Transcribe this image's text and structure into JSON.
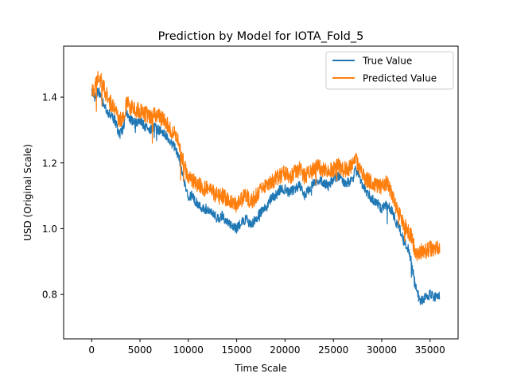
{
  "chart_data": {
    "type": "line",
    "title": "Prediction by Model for IOTA_Fold_5",
    "xlabel": "Time Scale",
    "ylabel": "USD (Original Scale)",
    "xlim": [
      -2900,
      37900
    ],
    "ylim": [
      0.665,
      1.555
    ],
    "xticks": [
      0,
      5000,
      10000,
      15000,
      20000,
      25000,
      30000,
      35000
    ],
    "xtick_labels": [
      "0",
      "5000",
      "10000",
      "15000",
      "20000",
      "25000",
      "30000",
      "35000"
    ],
    "yticks": [
      0.8,
      1.0,
      1.2,
      1.4
    ],
    "ytick_labels": [
      "0.8",
      "1.0",
      "1.2",
      "1.4"
    ],
    "grid": false,
    "legend_position": "top-right",
    "series": [
      {
        "name": "True Value",
        "color": "#1f77b4",
        "noise": 0.015,
        "x": [
          0,
          300,
          700,
          1200,
          1800,
          2400,
          2800,
          3200,
          3600,
          4000,
          4500,
          5000,
          5500,
          6000,
          6500,
          7000,
          7500,
          8000,
          8500,
          9000,
          9300,
          9600,
          10000,
          10400,
          10800,
          11200,
          11600,
          12000,
          12500,
          13000,
          13500,
          14000,
          14500,
          15000,
          15500,
          16000,
          16500,
          17000,
          17500,
          18000,
          18500,
          19000,
          19500,
          20000,
          20500,
          21000,
          21500,
          22000,
          22500,
          23000,
          23500,
          24000,
          24500,
          25000,
          25500,
          26000,
          26500,
          27000,
          27300,
          27600,
          28000,
          28500,
          29000,
          29500,
          30000,
          30500,
          31000,
          31500,
          32000,
          32300,
          32600,
          33000,
          33300,
          33600,
          34000,
          34500,
          35000,
          35500,
          36000
        ],
        "y": [
          1.42,
          1.4,
          1.42,
          1.38,
          1.35,
          1.33,
          1.29,
          1.3,
          1.35,
          1.33,
          1.32,
          1.33,
          1.31,
          1.3,
          1.31,
          1.3,
          1.29,
          1.27,
          1.25,
          1.22,
          1.18,
          1.14,
          1.1,
          1.1,
          1.08,
          1.07,
          1.06,
          1.06,
          1.05,
          1.03,
          1.04,
          1.02,
          1.01,
          1.0,
          1.02,
          1.03,
          1.01,
          1.03,
          1.05,
          1.07,
          1.09,
          1.1,
          1.12,
          1.12,
          1.11,
          1.12,
          1.13,
          1.1,
          1.12,
          1.14,
          1.15,
          1.14,
          1.13,
          1.15,
          1.16,
          1.14,
          1.14,
          1.15,
          1.18,
          1.16,
          1.13,
          1.11,
          1.09,
          1.08,
          1.06,
          1.07,
          1.06,
          1.02,
          0.99,
          0.96,
          0.95,
          0.91,
          0.86,
          0.81,
          0.78,
          0.79,
          0.8,
          0.79,
          0.8
        ]
      },
      {
        "name": "Predicted Value",
        "color": "#ff7f0e",
        "noise": 0.025,
        "x": [
          0,
          300,
          700,
          1200,
          1800,
          2400,
          2800,
          3200,
          3600,
          4000,
          4500,
          5000,
          5500,
          6000,
          6500,
          7000,
          7500,
          8000,
          8500,
          9000,
          9300,
          9600,
          10000,
          10400,
          10800,
          11200,
          11600,
          12000,
          12500,
          13000,
          13500,
          14000,
          14500,
          15000,
          15500,
          16000,
          16500,
          17000,
          17500,
          18000,
          18500,
          19000,
          19500,
          20000,
          20500,
          21000,
          21500,
          22000,
          22500,
          23000,
          23500,
          24000,
          24500,
          25000,
          25500,
          26000,
          26500,
          27000,
          27300,
          27600,
          28000,
          28500,
          29000,
          29500,
          30000,
          30500,
          31000,
          31500,
          32000,
          32300,
          32600,
          33000,
          33300,
          33600,
          34000,
          34500,
          35000,
          35500,
          36000
        ],
        "y": [
          1.43,
          1.42,
          1.47,
          1.43,
          1.39,
          1.36,
          1.33,
          1.33,
          1.38,
          1.37,
          1.36,
          1.36,
          1.35,
          1.34,
          1.35,
          1.34,
          1.33,
          1.31,
          1.29,
          1.26,
          1.22,
          1.19,
          1.15,
          1.15,
          1.14,
          1.13,
          1.12,
          1.12,
          1.11,
          1.1,
          1.1,
          1.09,
          1.08,
          1.07,
          1.09,
          1.1,
          1.08,
          1.1,
          1.12,
          1.13,
          1.14,
          1.15,
          1.16,
          1.17,
          1.16,
          1.17,
          1.18,
          1.16,
          1.17,
          1.18,
          1.19,
          1.18,
          1.17,
          1.18,
          1.19,
          1.18,
          1.18,
          1.19,
          1.21,
          1.19,
          1.16,
          1.15,
          1.14,
          1.13,
          1.13,
          1.14,
          1.11,
          1.07,
          1.04,
          1.01,
          1.0,
          0.98,
          0.95,
          0.92,
          0.93,
          0.93,
          0.94,
          0.94,
          0.94
        ]
      }
    ]
  }
}
